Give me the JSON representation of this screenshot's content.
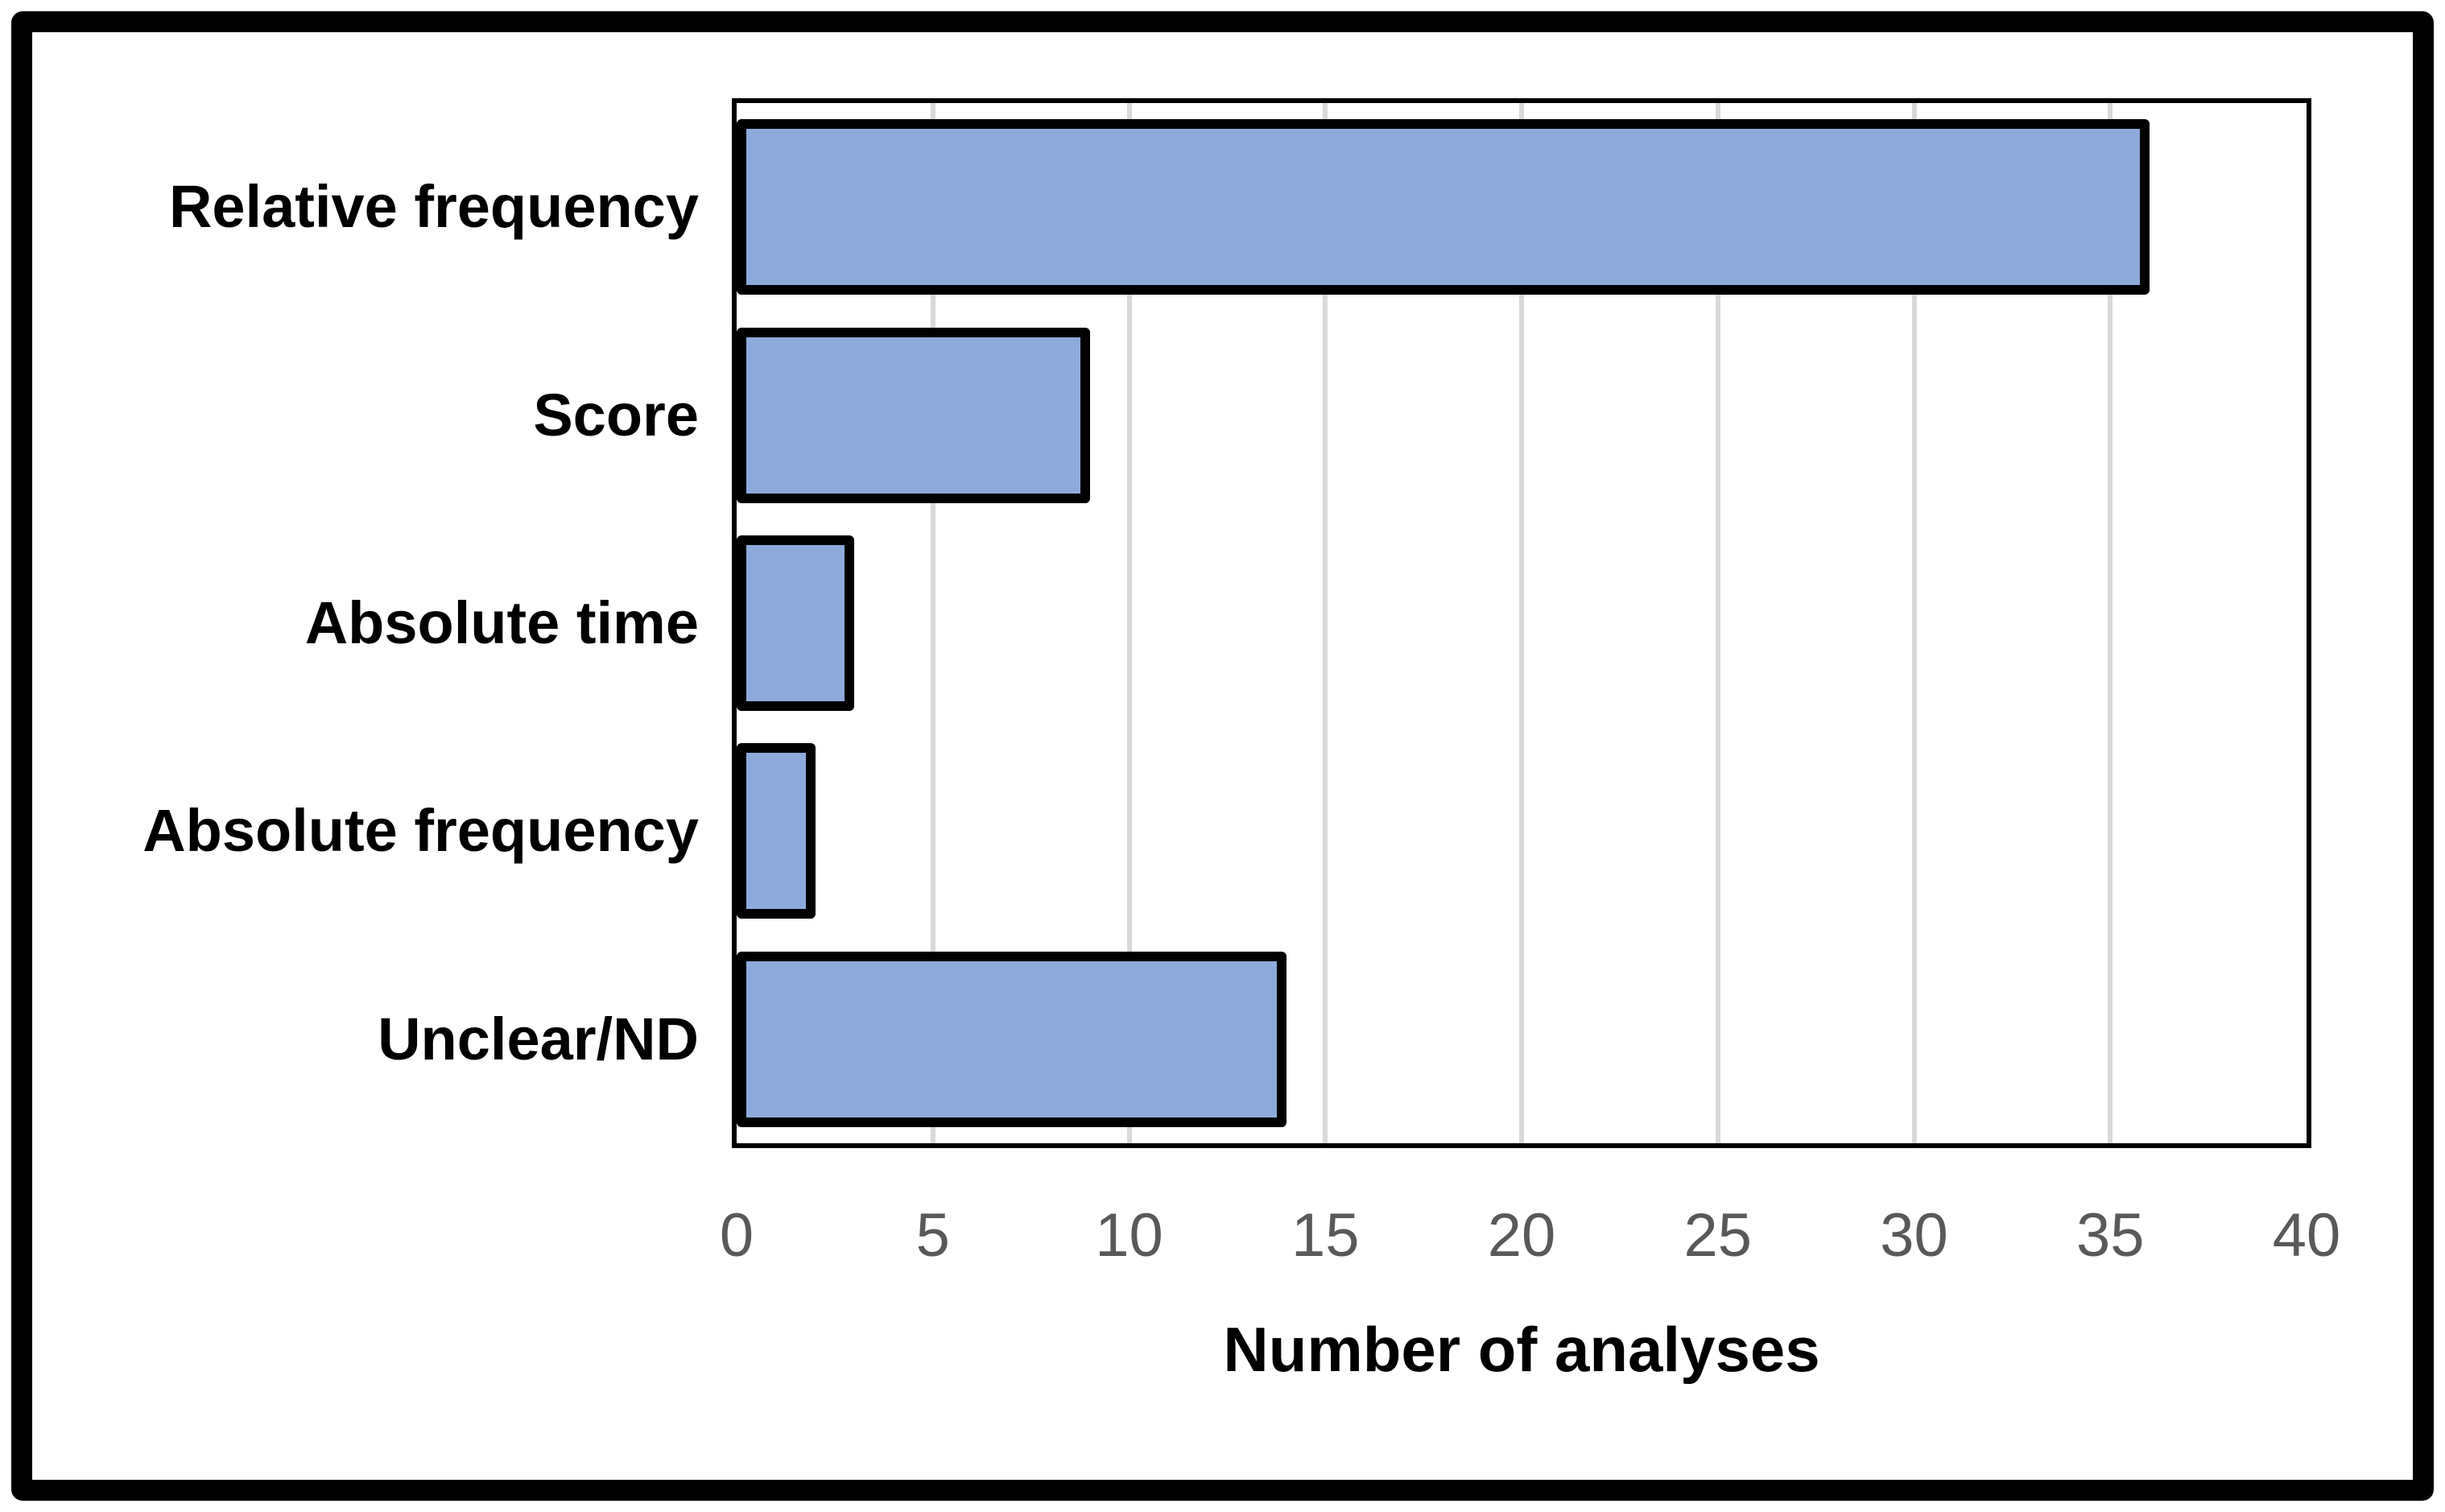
{
  "chart_data": {
    "type": "bar",
    "orientation": "horizontal",
    "title": "",
    "categories": [
      "Relative frequency",
      "Score",
      "Absolute time",
      "Absolute frequency",
      "Unclear/ND"
    ],
    "values": [
      36,
      9,
      3,
      2,
      14
    ],
    "xlabel": "Number of analyses",
    "ylabel": "",
    "xlim": [
      0,
      40
    ],
    "xticks": [
      0,
      5,
      10,
      15,
      20,
      25,
      30,
      35,
      40
    ],
    "grid": "vertical-gridlines-on",
    "legend": "none",
    "colors": {
      "bar_fill": "#8EAADB",
      "bar_border": "#000000",
      "gridline": "#D8D8D8",
      "tick_label": "#595959",
      "category_label": "#000000",
      "axis_title": "#000000",
      "frame_border": "#000000",
      "plot_border": "#000000",
      "background": "#FFFFFF"
    }
  }
}
